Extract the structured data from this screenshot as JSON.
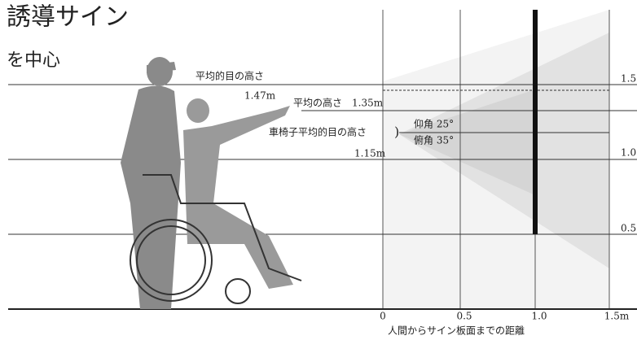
{
  "header": {
    "title": "誘導サイン",
    "subtitle": "を中心"
  },
  "annotations": {
    "eye_level": "平均的目の高さ",
    "eye_level_value": "1.47m",
    "avg_height": "平均の高さ",
    "avg_height_value": "1.35m",
    "wheelchair_eye": "車椅子平均的目の高さ",
    "bracket": ")",
    "elevation": "仰角 25°",
    "depression": "俯角 35°",
    "wheelchair_value": "1.15m"
  },
  "height_scale": [
    "1.5",
    "1.0",
    "0.5"
  ],
  "distance_scale": [
    "0",
    "0.5",
    "1.0",
    "1.5m"
  ],
  "distance_caption": "人間からサイン板面までの距離"
}
